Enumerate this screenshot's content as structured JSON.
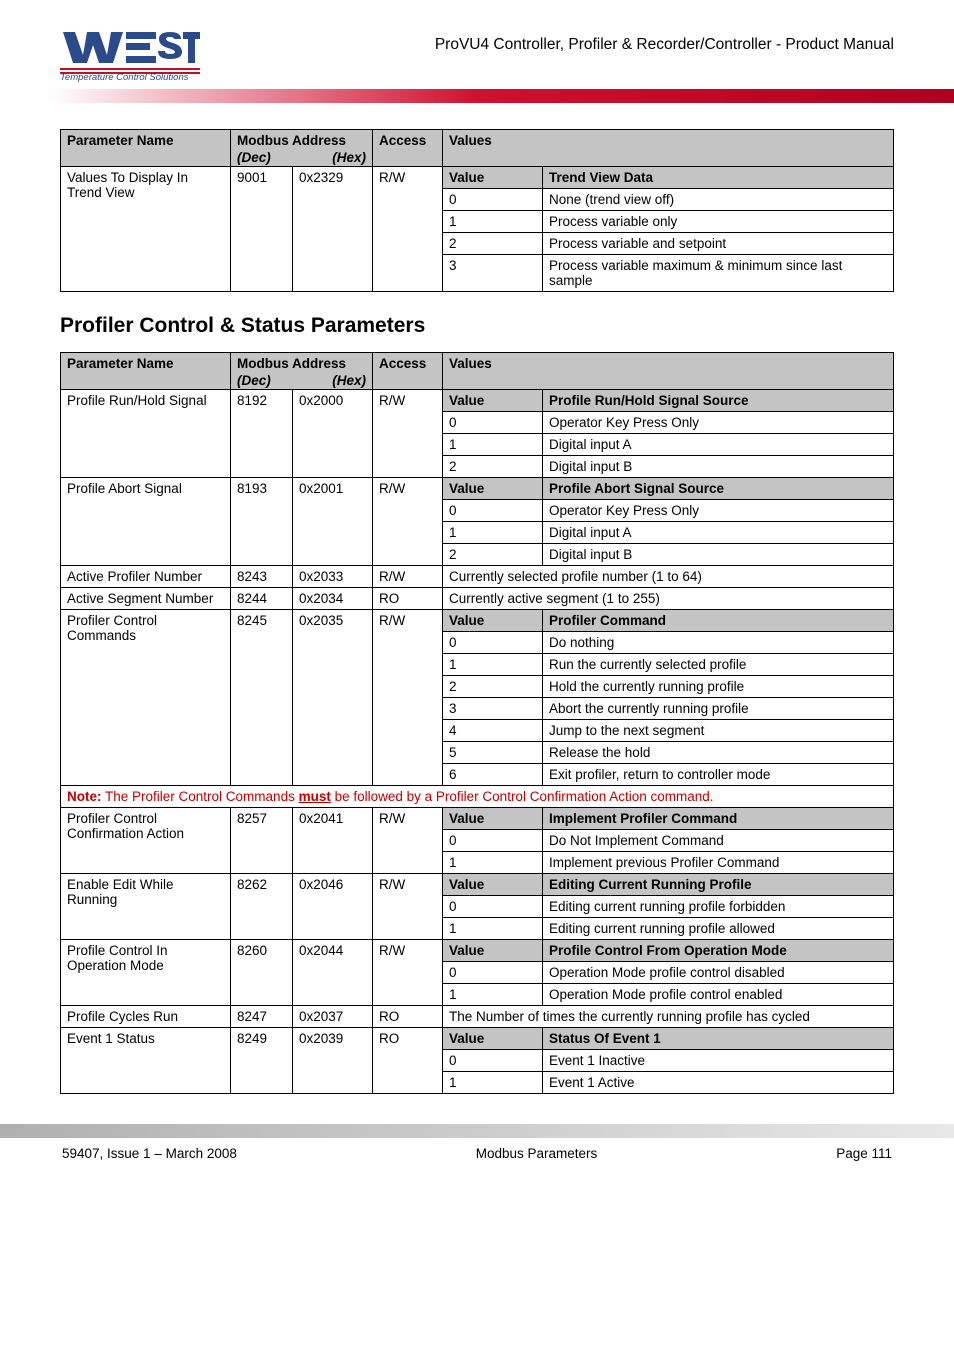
{
  "header": {
    "doc_title": "ProVU4 Controller, Profiler & Recorder/Controller - Product Manual",
    "tagline": "Temperature Control Solutions",
    "red_bar_color": "#c01028"
  },
  "table1": {
    "headers": {
      "name": "Parameter Name",
      "addr": "Modbus Address",
      "dec": "(Dec)",
      "hex": "(Hex)",
      "access": "Access",
      "values": "Values"
    },
    "param": {
      "name": "Values To Display In Trend View",
      "dec": "9001",
      "hex": "0x2329",
      "access": "R/W",
      "value_header_left": "Value",
      "value_header_right": "Trend View Data",
      "rows": [
        {
          "v": "0",
          "d": "None (trend view off)"
        },
        {
          "v": "1",
          "d": "Process variable only"
        },
        {
          "v": "2",
          "d": "Process variable and setpoint"
        },
        {
          "v": "3",
          "d": "Process variable maximum & minimum since last sample"
        }
      ]
    }
  },
  "section_title": "Profiler Control & Status Parameters",
  "table2": {
    "headers": {
      "name": "Parameter Name",
      "addr": "Modbus Address",
      "dec": "(Dec)",
      "hex": "(Hex)",
      "access": "Access",
      "values": "Values"
    },
    "params": [
      {
        "name": "Profile Run/Hold Signal",
        "dec": "8192",
        "hex": "0x2000",
        "access": "R/W",
        "vh_left": "Value",
        "vh_right": "Profile Run/Hold Signal Source",
        "rows": [
          {
            "v": "0",
            "d": "Operator Key Press Only"
          },
          {
            "v": "1",
            "d": "Digital input A"
          },
          {
            "v": "2",
            "d": "Digital input B"
          }
        ]
      },
      {
        "name": "Profile Abort Signal",
        "dec": "8193",
        "hex": "0x2001",
        "access": "R/W",
        "vh_left": "Value",
        "vh_right": "Profile Abort Signal Source",
        "rows": [
          {
            "v": "0",
            "d": "Operator Key Press Only"
          },
          {
            "v": "1",
            "d": "Digital input A"
          },
          {
            "v": "2",
            "d": "Digital input B"
          }
        ]
      },
      {
        "name": "Active Profiler Number",
        "dec": "8243",
        "hex": "0x2033",
        "access": "R/W",
        "span_text": "Currently selected profile number (1 to 64)"
      },
      {
        "name": "Active Segment Number",
        "dec": "8244",
        "hex": "0x2034",
        "access": "RO",
        "span_text": "Currently active segment (1 to 255)"
      },
      {
        "name": "Profiler Control Commands",
        "dec": "8245",
        "hex": "0x2035",
        "access": "R/W",
        "vh_left": "Value",
        "vh_right": "Profiler Command",
        "rows": [
          {
            "v": "0",
            "d": "Do nothing"
          },
          {
            "v": "1",
            "d": "Run the currently selected profile"
          },
          {
            "v": "2",
            "d": "Hold the currently running profile"
          },
          {
            "v": "3",
            "d": "Abort the currently running profile"
          },
          {
            "v": "4",
            "d": "Jump to the next segment"
          },
          {
            "v": "5",
            "d": "Release the hold"
          },
          {
            "v": "6",
            "d": "Exit profiler, return to controller mode"
          }
        ]
      }
    ],
    "note": {
      "prefix": "Note:",
      "before_must": " The Profiler Control Commands ",
      "must": "must",
      "after_must": " be followed by a Profiler Control Confirmation Action command."
    },
    "params2": [
      {
        "name": "Profiler Control Confirmation Action",
        "dec": "8257",
        "hex": "0x2041",
        "access": "R/W",
        "vh_left": "Value",
        "vh_right": "Implement Profiler Command",
        "rows": [
          {
            "v": "0",
            "d": "Do Not Implement Command"
          },
          {
            "v": "1",
            "d": "Implement previous Profiler Command"
          }
        ]
      },
      {
        "name": "Enable Edit While Running",
        "dec": "8262",
        "hex": "0x2046",
        "access": "R/W",
        "vh_left": "Value",
        "vh_right": "Editing Current Running Profile",
        "rows": [
          {
            "v": "0",
            "d": "Editing current running profile forbidden"
          },
          {
            "v": "1",
            "d": "Editing current running profile allowed"
          }
        ]
      },
      {
        "name": "Profile Control In Operation Mode",
        "dec": "8260",
        "hex": "0x2044",
        "access": "R/W",
        "vh_left": "Value",
        "vh_right": "Profile Control From Operation Mode",
        "rows": [
          {
            "v": "0",
            "d": "Operation Mode profile control disabled"
          },
          {
            "v": "1",
            "d": "Operation Mode profile control enabled"
          }
        ]
      },
      {
        "name": "Profile Cycles Run",
        "dec": "8247",
        "hex": "0x2037",
        "access": "RO",
        "span_text": "The Number of times the currently running profile has cycled"
      },
      {
        "name": "Event 1 Status",
        "dec": "8249",
        "hex": "0x2039",
        "access": "RO",
        "vh_left": "Value",
        "vh_right": "Status Of Event 1",
        "rows": [
          {
            "v": "0",
            "d": "Event 1 Inactive"
          },
          {
            "v": "1",
            "d": "Event 1 Active"
          }
        ]
      }
    ]
  },
  "footer": {
    "left": "59407, Issue 1 – March 2008",
    "center": "Modbus Parameters",
    "right": "Page 111"
  }
}
